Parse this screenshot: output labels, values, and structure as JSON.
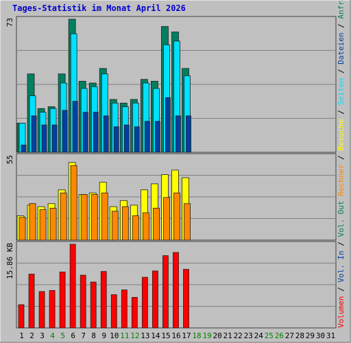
{
  "title": "Tages-Statistik im Monat April 2026",
  "colors": {
    "background": "#c0c0c0",
    "title": "#0000cc",
    "grid": "#808080",
    "frame": "#404040",
    "day_normal": "#000000",
    "day_weekend": "#008000",
    "anfragen": "#008060",
    "dateien": "#00e0ff",
    "seiten": "#0040a0",
    "besuche": "#ffff00",
    "rechner": "#ff8800",
    "volumen": "#ff0000"
  },
  "right_legend": {
    "volumen": "Volumen",
    "vol_in": "Vol. In",
    "vol_out": "Vol. Out",
    "rechner": "Rechner",
    "besuche": "Besuche",
    "seiten": "Seiten",
    "dateien": "Dateien",
    "anfragen": "Anfragen",
    "sep": "/"
  },
  "chart_data": [
    {
      "type": "bar",
      "title": "Anfragen / Dateien / Seiten",
      "ylabel": "73",
      "ylim": [
        0,
        73
      ],
      "categories": [
        "1",
        "2",
        "3",
        "4",
        "5",
        "6",
        "7",
        "8",
        "9",
        "10",
        "11",
        "12",
        "13",
        "14",
        "15",
        "16",
        "17",
        "18",
        "19",
        "20",
        "21",
        "22",
        "23",
        "24",
        "25",
        "26",
        "27",
        "28",
        "29",
        "30",
        "31"
      ],
      "weekend_days": [
        4,
        5,
        11,
        12,
        18,
        19,
        25,
        26
      ],
      "series": [
        {
          "name": "Anfragen",
          "values": [
            16,
            43,
            24,
            25,
            43,
            73,
            39,
            38,
            46,
            29,
            27,
            29,
            40,
            39,
            69,
            66,
            46,
            0,
            0,
            0,
            0,
            0,
            0,
            0,
            0,
            0,
            0,
            0,
            0,
            0,
            0
          ]
        },
        {
          "name": "Dateien",
          "values": [
            16,
            31,
            22,
            24,
            38,
            65,
            35,
            36,
            43,
            27,
            25,
            27,
            38,
            35,
            59,
            61,
            42,
            0,
            0,
            0,
            0,
            0,
            0,
            0,
            0,
            0,
            0,
            0,
            0,
            0,
            0
          ]
        },
        {
          "name": "Seiten",
          "values": [
            4,
            20,
            15,
            15,
            23,
            28,
            22,
            22,
            20,
            14,
            15,
            14,
            17,
            17,
            30,
            20,
            20,
            0,
            0,
            0,
            0,
            0,
            0,
            0,
            0,
            0,
            0,
            0,
            0,
            0,
            0
          ]
        }
      ]
    },
    {
      "type": "bar",
      "title": "Besuche / Rechner",
      "ylabel": "55",
      "ylim": [
        0,
        55
      ],
      "series": [
        {
          "name": "Besuche",
          "values": [
            16,
            23,
            22,
            24,
            33,
            51,
            30,
            31,
            38,
            22,
            26,
            23,
            33,
            37,
            43,
            46,
            41,
            0,
            0,
            0,
            0,
            0,
            0,
            0,
            0,
            0,
            0,
            0,
            0,
            0,
            0
          ]
        },
        {
          "name": "Rechner",
          "values": [
            15,
            24,
            20,
            21,
            31,
            49,
            30,
            30,
            31,
            19,
            22,
            16,
            18,
            21,
            28,
            31,
            24,
            0,
            0,
            0,
            0,
            0,
            0,
            0,
            0,
            0,
            0,
            0,
            0,
            0,
            0
          ]
        }
      ]
    },
    {
      "type": "bar",
      "title": "Volumen",
      "ylabel": "15.86 KB",
      "ylim": [
        0,
        15.86
      ],
      "series": [
        {
          "name": "Volumen",
          "values": [
            4.4,
            10.2,
            6.9,
            7.1,
            10.6,
            15.86,
            10.0,
            8.7,
            10.7,
            6.3,
            7.2,
            5.8,
            9.6,
            10.8,
            13.7,
            14.3,
            11.1,
            0,
            0,
            0,
            0,
            0,
            0,
            0,
            0,
            0,
            0,
            0,
            0,
            0,
            0
          ]
        }
      ]
    }
  ]
}
